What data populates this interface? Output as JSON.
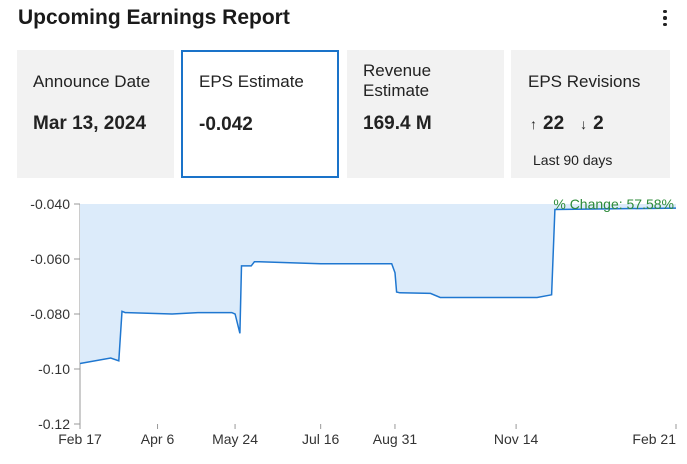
{
  "header": {
    "title": "Upcoming Earnings Report",
    "menu_icon": "kebab-menu-icon"
  },
  "cards": {
    "announce": {
      "label": "Announce Date",
      "value": "Mar 13, 2024"
    },
    "eps": {
      "label": "EPS Estimate",
      "value": "-0.042",
      "selected": true
    },
    "revenue": {
      "label": "Revenue Estimate",
      "value": "169.4 M"
    },
    "revisions": {
      "label": "EPS Revisions",
      "up_arrow": "↑",
      "up_count": "22",
      "down_arrow": "↓",
      "down_count": "2",
      "period": "Last 90 days"
    }
  },
  "colors": {
    "accent": "#1a73c9",
    "line": "#1f77d0",
    "fill": "#dcebfa",
    "change_text": "#2e8b3a",
    "card_bg": "#f2f2f2"
  },
  "chart_data": {
    "type": "area",
    "change_label": "% Change: 57.58%",
    "ylim": [
      -0.12,
      -0.04
    ],
    "yticks": [
      "-0.040",
      "-0.060",
      "-0.080",
      "-0.10",
      "-0.12"
    ],
    "ytick_values": [
      -0.04,
      -0.06,
      -0.08,
      -0.1,
      -0.12
    ],
    "xticks": [
      "Feb 17",
      "Apr 6",
      "May 24",
      "Jul 16",
      "Aug 31",
      "Nov 14",
      "Feb 21"
    ],
    "xtick_dates": [
      "2023-02-17",
      "2023-04-06",
      "2023-05-24",
      "2023-07-16",
      "2023-08-31",
      "2023-11-14",
      "2024-02-21"
    ],
    "xlim": [
      "2023-02-17",
      "2024-02-21"
    ],
    "grid": false,
    "series": [
      {
        "points": [
          {
            "x": "2023-02-17",
            "y": -0.098
          },
          {
            "x": "2023-03-08",
            "y": -0.096
          },
          {
            "x": "2023-03-13",
            "y": -0.097
          },
          {
            "x": "2023-03-15",
            "y": -0.079
          },
          {
            "x": "2023-03-17",
            "y": -0.0795
          },
          {
            "x": "2023-04-15",
            "y": -0.08
          },
          {
            "x": "2023-05-01",
            "y": -0.0795
          },
          {
            "x": "2023-05-22",
            "y": -0.0795
          },
          {
            "x": "2023-05-24",
            "y": -0.08
          },
          {
            "x": "2023-05-27",
            "y": -0.087
          },
          {
            "x": "2023-05-28",
            "y": -0.0625
          },
          {
            "x": "2023-06-03",
            "y": -0.0625
          },
          {
            "x": "2023-06-05",
            "y": -0.061
          },
          {
            "x": "2023-06-08",
            "y": -0.061
          },
          {
            "x": "2023-07-16",
            "y": -0.0617
          },
          {
            "x": "2023-08-29",
            "y": -0.0617
          },
          {
            "x": "2023-08-31",
            "y": -0.065
          },
          {
            "x": "2023-09-01",
            "y": -0.072
          },
          {
            "x": "2023-09-03",
            "y": -0.0723
          },
          {
            "x": "2023-09-22",
            "y": -0.0725
          },
          {
            "x": "2023-09-28",
            "y": -0.074
          },
          {
            "x": "2023-11-27",
            "y": -0.074
          },
          {
            "x": "2023-12-06",
            "y": -0.073
          },
          {
            "x": "2023-12-08",
            "y": -0.042
          },
          {
            "x": "2024-02-21",
            "y": -0.0415
          }
        ]
      }
    ]
  }
}
